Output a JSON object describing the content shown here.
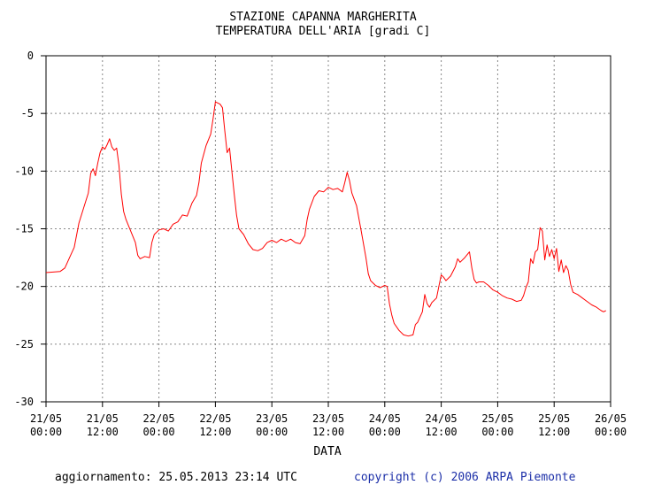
{
  "header": {
    "title_line1": "STAZIONE CAPANNA MARGHERITA",
    "title_line2": "TEMPERATURA DELL'ARIA [gradi C]"
  },
  "footer": {
    "update_text": "aggiornamento: 25.05.2013 23:14 UTC",
    "copyright_text": "copyright (c) 2006 ARPA Piemonte"
  },
  "colors": {
    "series": "#ff0000",
    "grid": "#888888",
    "axis": "#000000",
    "copyright": "#1c2fa8"
  },
  "chart_data": {
    "type": "line",
    "title": "STAZIONE CAPANNA MARGHERITA\nTEMPERATURA DELL'ARIA [gradi C]",
    "xlabel": "DATA",
    "ylabel": "",
    "ylim": [
      -30,
      0
    ],
    "yticks": [
      0,
      -5,
      -10,
      -15,
      -20,
      -25,
      -30
    ],
    "xlim": [
      "21/05 00:00",
      "26/05 00:00"
    ],
    "xticks": [
      {
        "line1": "21/05",
        "line2": "00:00",
        "hour": 0
      },
      {
        "line1": "21/05",
        "line2": "12:00",
        "hour": 12
      },
      {
        "line1": "22/05",
        "line2": "00:00",
        "hour": 24
      },
      {
        "line1": "22/05",
        "line2": "12:00",
        "hour": 36
      },
      {
        "line1": "23/05",
        "line2": "00:00",
        "hour": 48
      },
      {
        "line1": "23/05",
        "line2": "12:00",
        "hour": 60
      },
      {
        "line1": "24/05",
        "line2": "00:00",
        "hour": 72
      },
      {
        "line1": "24/05",
        "line2": "12:00",
        "hour": 84
      },
      {
        "line1": "25/05",
        "line2": "00:00",
        "hour": 96
      },
      {
        "line1": "25/05",
        "line2": "12:00",
        "hour": 108
      },
      {
        "line1": "26/05",
        "line2": "00:00",
        "hour": 120
      }
    ],
    "grid": true,
    "series": [
      {
        "values": [
          [
            0,
            -18.8
          ],
          [
            3,
            -18.7
          ],
          [
            4,
            -18.4
          ],
          [
            5,
            -17.5
          ],
          [
            6,
            -16.6
          ],
          [
            7,
            -14.5
          ],
          [
            8,
            -13.2
          ],
          [
            9,
            -11.9
          ],
          [
            9.5,
            -10.2
          ],
          [
            10,
            -9.8
          ],
          [
            10.5,
            -10.4
          ],
          [
            11,
            -9.3
          ],
          [
            11.5,
            -8.4
          ],
          [
            12,
            -7.9
          ],
          [
            12.5,
            -8.1
          ],
          [
            13,
            -7.7
          ],
          [
            13.5,
            -7.2
          ],
          [
            14,
            -7.9
          ],
          [
            14.5,
            -8.2
          ],
          [
            15,
            -8.0
          ],
          [
            15.5,
            -9.5
          ],
          [
            16,
            -12.0
          ],
          [
            16.5,
            -13.5
          ],
          [
            17,
            -14.2
          ],
          [
            18,
            -15.2
          ],
          [
            19,
            -16.2
          ],
          [
            19.5,
            -17.3
          ],
          [
            20,
            -17.6
          ],
          [
            21,
            -17.4
          ],
          [
            22,
            -17.5
          ],
          [
            22.5,
            -16.2
          ],
          [
            23,
            -15.5
          ],
          [
            24,
            -15.1
          ],
          [
            25,
            -15.0
          ],
          [
            26,
            -15.2
          ],
          [
            27,
            -14.6
          ],
          [
            28,
            -14.4
          ],
          [
            29,
            -13.8
          ],
          [
            30,
            -13.9
          ],
          [
            31,
            -12.8
          ],
          [
            32,
            -12.1
          ],
          [
            32.5,
            -11.0
          ],
          [
            33,
            -9.3
          ],
          [
            34,
            -7.8
          ],
          [
            35,
            -6.8
          ],
          [
            35.5,
            -5.5
          ],
          [
            36,
            -4.0
          ],
          [
            37,
            -4.2
          ],
          [
            37.5,
            -4.5
          ],
          [
            38,
            -6.5
          ],
          [
            38.5,
            -8.4
          ],
          [
            39,
            -8.0
          ],
          [
            39.5,
            -10.0
          ],
          [
            40,
            -12.0
          ],
          [
            40.5,
            -13.8
          ],
          [
            41,
            -15.0
          ],
          [
            42,
            -15.5
          ],
          [
            43,
            -16.3
          ],
          [
            44,
            -16.8
          ],
          [
            45,
            -16.9
          ],
          [
            46,
            -16.7
          ],
          [
            47,
            -16.2
          ],
          [
            48,
            -16.0
          ],
          [
            49,
            -16.2
          ],
          [
            50,
            -15.9
          ],
          [
            51,
            -16.1
          ],
          [
            52,
            -15.9
          ],
          [
            53,
            -16.2
          ],
          [
            54,
            -16.3
          ],
          [
            55,
            -15.6
          ],
          [
            55.5,
            -14.2
          ],
          [
            56,
            -13.3
          ],
          [
            57,
            -12.2
          ],
          [
            58,
            -11.7
          ],
          [
            59,
            -11.8
          ],
          [
            60,
            -11.4
          ],
          [
            61,
            -11.6
          ],
          [
            62,
            -11.5
          ],
          [
            63,
            -11.8
          ],
          [
            63.5,
            -11.0
          ],
          [
            64,
            -10.1
          ],
          [
            64.5,
            -10.8
          ],
          [
            65,
            -11.9
          ],
          [
            66,
            -13.0
          ],
          [
            67,
            -15.2
          ],
          [
            68,
            -17.5
          ],
          [
            68.5,
            -18.9
          ],
          [
            69,
            -19.5
          ],
          [
            70,
            -19.9
          ],
          [
            71,
            -20.1
          ],
          [
            72,
            -19.9
          ],
          [
            72.5,
            -20.0
          ],
          [
            73,
            -21.5
          ],
          [
            73.5,
            -22.5
          ],
          [
            74,
            -23.2
          ],
          [
            75,
            -23.8
          ],
          [
            76,
            -24.2
          ],
          [
            77,
            -24.3
          ],
          [
            78,
            -24.2
          ],
          [
            78.5,
            -23.3
          ],
          [
            79,
            -23.1
          ],
          [
            80,
            -22.2
          ],
          [
            80.5,
            -20.7
          ],
          [
            81,
            -21.5
          ],
          [
            81.5,
            -21.8
          ],
          [
            82,
            -21.4
          ],
          [
            83,
            -21.0
          ],
          [
            83.5,
            -20.0
          ],
          [
            84,
            -19.0
          ],
          [
            84.5,
            -19.2
          ],
          [
            85,
            -19.5
          ],
          [
            86,
            -19.1
          ],
          [
            87,
            -18.3
          ],
          [
            87.5,
            -17.6
          ],
          [
            88,
            -17.9
          ],
          [
            89,
            -17.5
          ],
          [
            90,
            -17.0
          ],
          [
            90.5,
            -18.4
          ],
          [
            91,
            -19.4
          ],
          [
            91.5,
            -19.7
          ],
          [
            92,
            -19.6
          ],
          [
            93,
            -19.6
          ],
          [
            94,
            -19.9
          ],
          [
            95,
            -20.3
          ],
          [
            96,
            -20.5
          ],
          [
            97,
            -20.8
          ],
          [
            98,
            -21.0
          ],
          [
            99,
            -21.1
          ],
          [
            100,
            -21.3
          ],
          [
            101,
            -21.2
          ],
          [
            101.5,
            -20.8
          ],
          [
            102,
            -20.1
          ],
          [
            102.5,
            -19.6
          ],
          [
            103,
            -17.6
          ],
          [
            103.5,
            -18.0
          ],
          [
            104,
            -17.0
          ],
          [
            104.5,
            -16.8
          ],
          [
            105,
            -14.9
          ],
          [
            105.5,
            -15.2
          ],
          [
            106,
            -17.7
          ],
          [
            106.5,
            -16.4
          ],
          [
            107,
            -17.4
          ],
          [
            107.5,
            -16.8
          ],
          [
            108,
            -17.6
          ],
          [
            108.5,
            -16.7
          ],
          [
            109,
            -18.7
          ],
          [
            109.5,
            -17.7
          ],
          [
            110,
            -18.8
          ],
          [
            110.5,
            -18.2
          ],
          [
            111,
            -18.6
          ],
          [
            111.5,
            -19.8
          ],
          [
            112,
            -20.5
          ],
          [
            113,
            -20.7
          ],
          [
            114,
            -21.0
          ],
          [
            115,
            -21.3
          ],
          [
            116,
            -21.6
          ],
          [
            117,
            -21.8
          ],
          [
            118,
            -22.1
          ],
          [
            118.5,
            -22.2
          ],
          [
            119,
            -22.1
          ]
        ]
      }
    ]
  }
}
